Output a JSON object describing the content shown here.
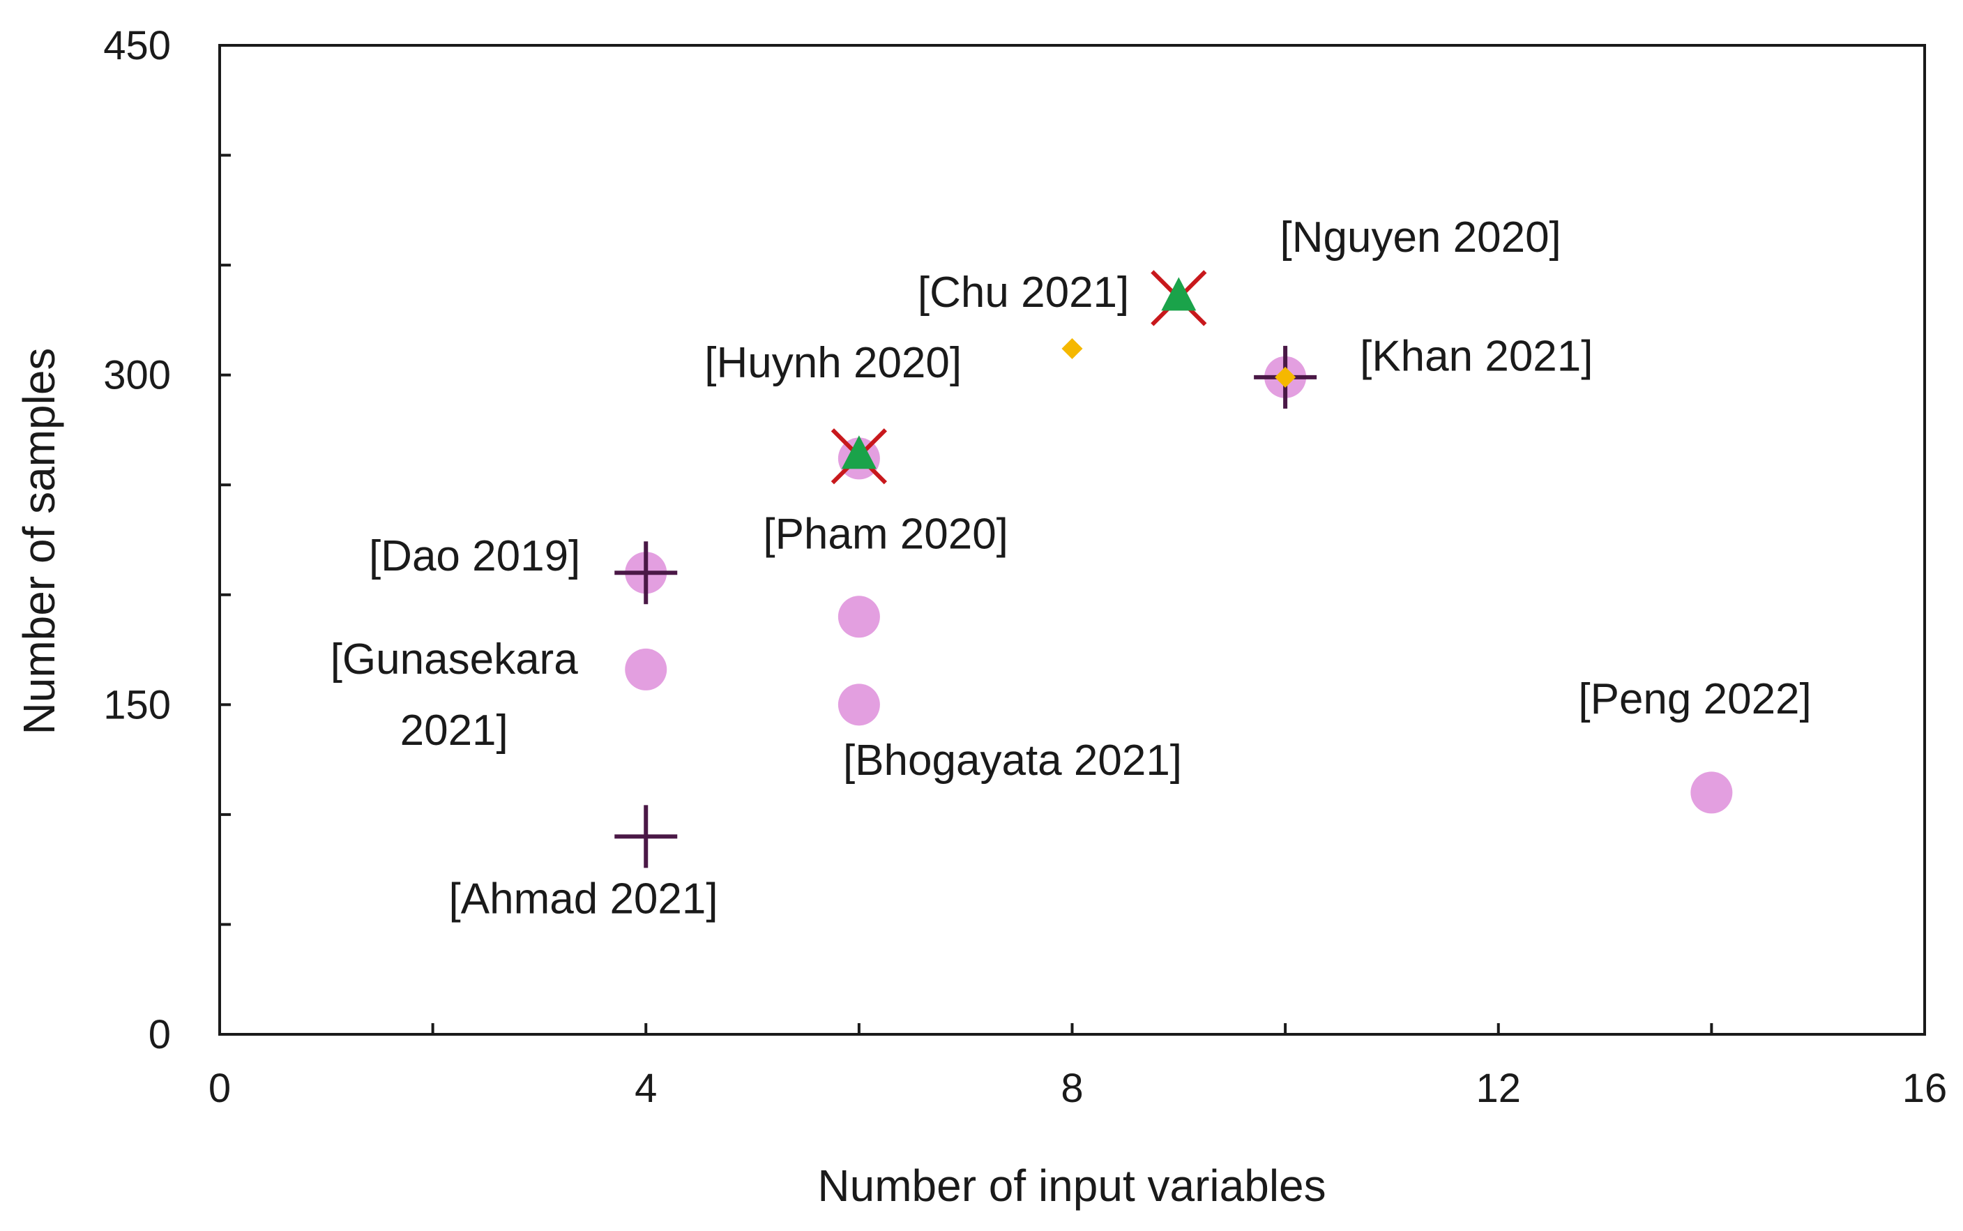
{
  "chart_data": {
    "type": "scatter",
    "title": "",
    "xlabel": "Number of input variables",
    "ylabel": "Number of samples",
    "xlim": [
      0,
      16
    ],
    "ylim": [
      0,
      450
    ],
    "xticks": [
      0,
      4,
      8,
      12,
      16
    ],
    "yticks": [
      0,
      150,
      300,
      450
    ],
    "x_minor_ticks": [
      2,
      6,
      10,
      14
    ],
    "y_minor_ticks": [
      50,
      100,
      200,
      250,
      350,
      400
    ],
    "grid": false,
    "legend": "none",
    "colors": {
      "circle": "#e39fe0",
      "plus": "#4a1846",
      "cross": "#c8181c",
      "triangle": "#1aa34a",
      "diamond": "#f5b800",
      "axis": "#1a1a1a"
    },
    "series": [
      {
        "name": "circle",
        "marker": "circle",
        "points": [
          {
            "x": 4,
            "y": 210
          },
          {
            "x": 4,
            "y": 166
          },
          {
            "x": 6,
            "y": 262
          },
          {
            "x": 6,
            "y": 190
          },
          {
            "x": 6,
            "y": 150
          },
          {
            "x": 10,
            "y": 299
          },
          {
            "x": 14,
            "y": 110
          }
        ]
      },
      {
        "name": "plus",
        "marker": "plus",
        "points": [
          {
            "x": 4,
            "y": 210
          },
          {
            "x": 4,
            "y": 90
          },
          {
            "x": 10,
            "y": 299
          }
        ]
      },
      {
        "name": "cross",
        "marker": "cross",
        "points": [
          {
            "x": 6,
            "y": 263
          },
          {
            "x": 9,
            "y": 335
          }
        ]
      },
      {
        "name": "triangle",
        "marker": "triangle",
        "points": [
          {
            "x": 6,
            "y": 263
          },
          {
            "x": 9,
            "y": 335
          }
        ]
      },
      {
        "name": "diamond",
        "marker": "diamond",
        "points": [
          {
            "x": 8,
            "y": 312
          },
          {
            "x": 10,
            "y": 299
          }
        ]
      }
    ],
    "annotations": [
      {
        "name": "nguyen-2020",
        "lines": [
          "[Nguyen 2020]"
        ],
        "x": 9.95,
        "y": 356,
        "anchor": "start"
      },
      {
        "name": "chu-2021",
        "lines": [
          "[Chu 2021]"
        ],
        "x": 6.55,
        "y": 331,
        "anchor": "start"
      },
      {
        "name": "khan-2021",
        "lines": [
          "[Khan 2021]"
        ],
        "x": 10.7,
        "y": 302,
        "anchor": "start"
      },
      {
        "name": "huynh-2020",
        "lines": [
          "[Huynh 2020]"
        ],
        "x": 4.55,
        "y": 299,
        "anchor": "start"
      },
      {
        "name": "dao-2019",
        "lines": [
          "[Dao 2019]"
        ],
        "x": 1.4,
        "y": 211,
        "anchor": "start"
      },
      {
        "name": "pham-2020",
        "lines": [
          "[Pham 2020]"
        ],
        "x": 5.1,
        "y": 221,
        "anchor": "start"
      },
      {
        "name": "gunasekara-2021",
        "lines": [
          "[Gunasekara",
          "2021]"
        ],
        "x": 2.2,
        "y": 164,
        "anchor": "middle"
      },
      {
        "name": "bhogayata-2021",
        "lines": [
          "[Bhogayata 2021]"
        ],
        "x": 5.85,
        "y": 118,
        "anchor": "start"
      },
      {
        "name": "peng-2022",
        "lines": [
          "[Peng 2022]"
        ],
        "x": 12.75,
        "y": 146,
        "anchor": "start"
      },
      {
        "name": "ahmad-2021",
        "lines": [
          "[Ahmad 2021]"
        ],
        "x": 2.15,
        "y": 55,
        "anchor": "start"
      }
    ]
  }
}
